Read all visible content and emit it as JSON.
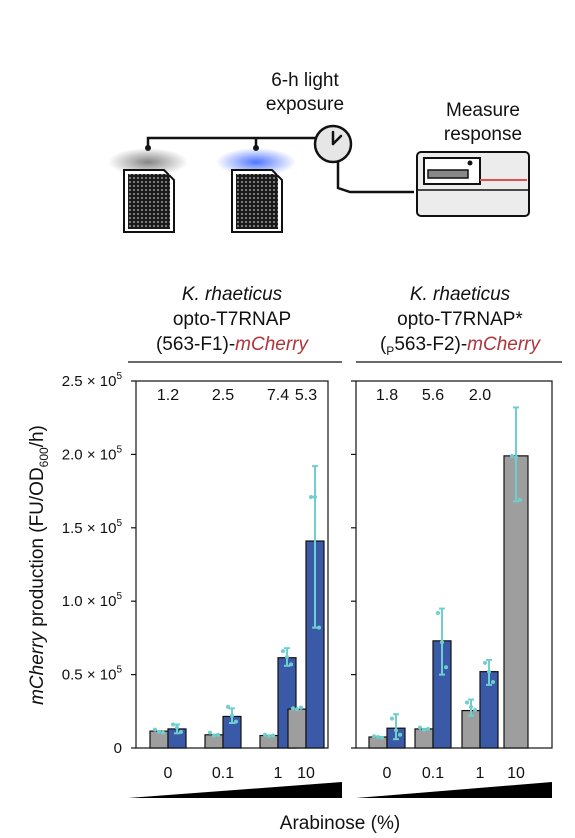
{
  "schematic": {
    "exposure_line1": "6-h light",
    "exposure_line2": "exposure",
    "measure_line1": "Measure",
    "measure_line2": "response"
  },
  "colors": {
    "gray_bar": "#9e9e9e",
    "blue_bar": "#3a5aa8",
    "points": "#6fcfcf",
    "error": "#6fcfcf",
    "red_text": "#b0343a"
  },
  "chart_data": [
    {
      "type": "bar",
      "title_lines": [
        "K. rhaeticus",
        "opto-T7RNAP",
        "(563-F1)-",
        "mCherry"
      ],
      "ylabel": "mCherry production (FU/OD600/h)",
      "ylabel_parts": [
        "mCherry",
        " production (FU/OD",
        "600",
        "/h)"
      ],
      "xlabel": "Arabinose (%)",
      "ylim": [
        0,
        250000
      ],
      "yticks": [
        0,
        50000,
        100000,
        150000,
        200000,
        250000
      ],
      "ytick_labels": [
        "0",
        "0.5 × 10",
        "1.0 × 10",
        "1.5 × 10",
        "2.0 × 10",
        "2.5 × 10"
      ],
      "ytick_exp": "5",
      "categories": [
        "0",
        "0.1",
        "1",
        "10"
      ],
      "fold_changes": [
        "1.2",
        "2.5",
        "7.4",
        "5.3"
      ],
      "series": [
        {
          "values": [
            11500,
            9000,
            8500,
            26500
          ],
          "errors": [
            null,
            null,
            null,
            null
          ],
          "points": [
            [
              12500,
              11000,
              10500
            ],
            [
              10500,
              8500,
              9000
            ],
            [
              9000,
              8000,
              8500
            ],
            [
              27000,
              26500,
              27500
            ]
          ]
        },
        {
          "values": [
            13000,
            21500,
            61500,
            141000
          ],
          "errors": [
            [
              10000,
              16000
            ],
            [
              17000,
              27000
            ],
            [
              56000,
              68000
            ],
            [
              82000,
              192000
            ]
          ],
          "points": [
            [
              16000,
              14000,
              11000
            ],
            [
              28000,
              22000,
              18000
            ],
            [
              66000,
              62000,
              57000
            ],
            [
              171000,
              171000,
              82000
            ]
          ]
        }
      ]
    },
    {
      "type": "bar",
      "title_lines": [
        "K. rhaeticus",
        "opto-T7RNAP*",
        "(P563-F2)-",
        "mCherry"
      ],
      "title_sub": "P",
      "ylim": [
        0,
        250000
      ],
      "categories": [
        "0",
        "0.1",
        "1",
        "10"
      ],
      "fold_changes": [
        "1.8",
        "5.6",
        "2.0"
      ],
      "series": [
        {
          "values": [
            7500,
            13000,
            25500,
            199000
          ],
          "errors": [
            null,
            null,
            [
              22000,
              33000
            ],
            [
              168000,
              232000
            ]
          ],
          "points": [
            [
              8000,
              7500,
              7000
            ],
            [
              14000,
              12500,
              13000
            ],
            [
              31000,
              28000,
              26000
            ],
            [
              199000,
              198000,
              169000
            ]
          ]
        },
        {
          "values": [
            13500,
            73000,
            52000,
            null
          ],
          "errors": [
            [
              6000,
              23000
            ],
            [
              50000,
              95000
            ],
            [
              43000,
              60000
            ],
            null
          ],
          "points": [
            [
              20000,
              12000,
              9000
            ],
            [
              92000,
              72000,
              55000
            ],
            [
              58000,
              52000,
              45000
            ],
            null
          ]
        }
      ]
    }
  ]
}
